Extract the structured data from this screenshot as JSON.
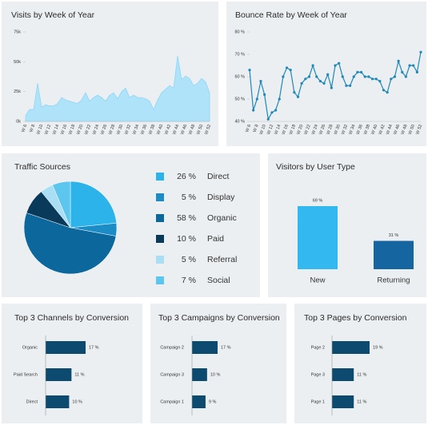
{
  "chart_data": [
    {
      "type": "area",
      "title": "Visits by Week of Year",
      "categories": [
        "W 6",
        null,
        "W 8",
        null,
        "W 10",
        null,
        "W 12",
        null,
        "W 14",
        null,
        "W 16",
        null,
        "W 18",
        null,
        "W 20",
        null,
        "W 22",
        null,
        "W 24",
        null,
        "W 26",
        null,
        "W 28",
        null,
        "W 30",
        null,
        "W 32",
        null,
        "W 34",
        null,
        "W 36",
        null,
        "W 38",
        null,
        "W 40",
        null,
        "W 42",
        null,
        "W 44",
        null,
        "W 46",
        null,
        "W 48",
        null,
        "W 50",
        null,
        "W 52"
      ],
      "values": [
        5000,
        10000,
        10000,
        32000,
        12000,
        14000,
        13000,
        13000,
        15000,
        20000,
        18000,
        17000,
        16000,
        15000,
        18000,
        24000,
        17000,
        20000,
        22000,
        20000,
        17000,
        22000,
        24000,
        19000,
        25000,
        28000,
        20000,
        22000,
        20000,
        20000,
        19000,
        17000,
        10000,
        18000,
        24000,
        27000,
        30000,
        28000,
        55000,
        35000,
        38000,
        36000,
        30000,
        32000,
        36000,
        33000,
        24000
      ],
      "color": "#aee3f9",
      "ylim": [
        0,
        75000
      ],
      "yticks": [
        {
          "value": 0,
          "label": "0k"
        },
        {
          "value": 25000,
          "label": "25k"
        },
        {
          "value": 50000,
          "label": "50k"
        },
        {
          "value": 75000,
          "label": "75k"
        }
      ]
    },
    {
      "type": "line",
      "title": "Bounce Rate by Week of Year",
      "categories": [
        "W 6",
        null,
        "W 8",
        null,
        "W 10",
        null,
        "W 12",
        null,
        "W 14",
        null,
        "W 16",
        null,
        "W 18",
        null,
        "W 20",
        null,
        "W 22",
        null,
        "W 24",
        null,
        "W 26",
        null,
        "W 28",
        null,
        "W 30",
        null,
        "W 32",
        null,
        "W 34",
        null,
        "W 36",
        null,
        "W 38",
        null,
        "W 40",
        null,
        "W 42",
        null,
        "W 44",
        null,
        "W 46",
        null,
        "W 48",
        null,
        "W 50",
        null,
        "W 52"
      ],
      "values": [
        63,
        45,
        50,
        58,
        52,
        41,
        44,
        45,
        50,
        60,
        64,
        63,
        53,
        51,
        57,
        59,
        60,
        65,
        60,
        58,
        57,
        61,
        55,
        65,
        66,
        60,
        56,
        56,
        60,
        62,
        62,
        60,
        60,
        59,
        59,
        58,
        54,
        53,
        59,
        60,
        67,
        62,
        60,
        65,
        65,
        62,
        71
      ],
      "color": "#1e88b8",
      "ylim": [
        40,
        80
      ],
      "yticks": [
        {
          "value": 40,
          "label": "40 %"
        },
        {
          "value": 50,
          "label": "50 %"
        },
        {
          "value": 60,
          "label": "60 %"
        },
        {
          "value": 70,
          "label": "70 %"
        },
        {
          "value": 80,
          "label": "80 %"
        }
      ]
    },
    {
      "type": "pie",
      "title": "Traffic Sources",
      "categories": [
        "Direct",
        "Display",
        "Organic",
        "Paid",
        "Referral",
        "Social"
      ],
      "values": [
        26,
        5,
        58,
        10,
        5,
        7
      ],
      "value_labels": [
        "26 %",
        "5 %",
        "58 %",
        "10 %",
        "5 %",
        "7 %"
      ],
      "colors": [
        "#2cb4ea",
        "#1b8cc6",
        "#0c679d",
        "#0a3a5a",
        "#a9def5",
        "#5cc6ee"
      ]
    },
    {
      "type": "bar",
      "title": "Visitors by User Type",
      "categories": [
        "New",
        "Returning"
      ],
      "values": [
        69,
        31
      ],
      "value_labels": [
        "69 %",
        "31 %"
      ],
      "colors": [
        "#34b8f0",
        "#1565a0"
      ]
    },
    {
      "type": "hbar",
      "title": "Top 3 Channels by Conversion",
      "categories": [
        "Organic",
        "Paid Search",
        "Direct"
      ],
      "values": [
        17,
        11,
        10
      ],
      "value_labels": [
        "17 %",
        "11 %",
        "10 %"
      ],
      "color": "#0d4a70"
    },
    {
      "type": "hbar",
      "title": "Top 3 Campaigns by Conversion",
      "categories": [
        "Campaign 2",
        "Campaign 3",
        "Campaign 1"
      ],
      "values": [
        17,
        10,
        9
      ],
      "value_labels": [
        "17 %",
        "10 %",
        "9 %"
      ],
      "color": "#0d4a70"
    },
    {
      "type": "hbar",
      "title": "Top 3 Pages by Conversion",
      "categories": [
        "Page 2",
        "Page 3",
        "Page 1"
      ],
      "values": [
        19,
        11,
        11
      ],
      "value_labels": [
        "19 %",
        "11 %",
        "11 %"
      ],
      "color": "#0d4a70"
    }
  ]
}
